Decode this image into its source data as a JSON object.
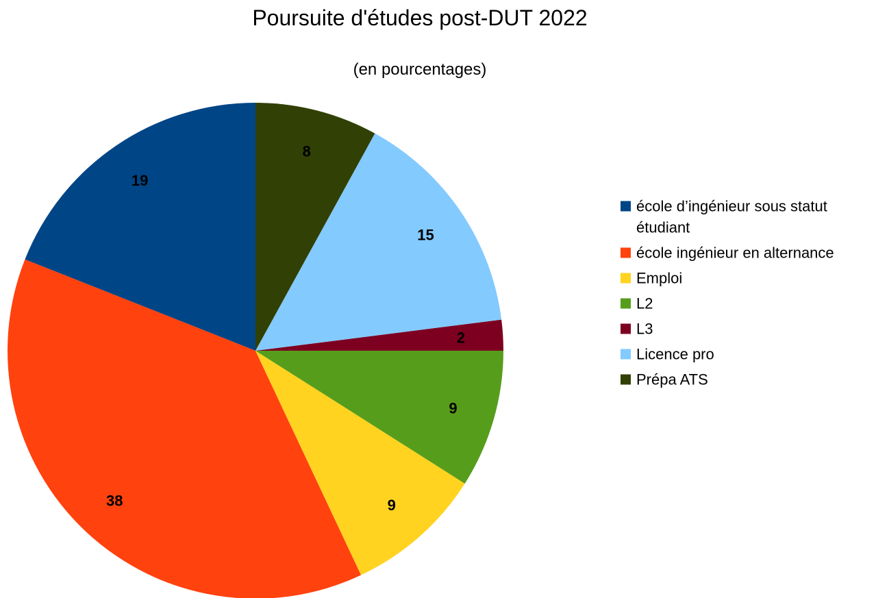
{
  "chart_data": {
    "type": "pie",
    "title": "Poursuite d'études post-DUT 2022",
    "subtitle": "(en pourcentages)",
    "start": "12 o'clock",
    "direction": "counterclockwise",
    "legend_position": "right",
    "show_value_labels": true,
    "slices": [
      {
        "label": "école d’ingénieur sous statut étudiant",
        "legend_lines": [
          "école d’ingénieur sous statut",
          "étudiant"
        ],
        "value": 19,
        "color": "#004586"
      },
      {
        "label": "école ingénieur en alternance",
        "legend_lines": [
          "école ingénieur en alternance"
        ],
        "value": 38,
        "color": "#ff420e"
      },
      {
        "label": "Emploi",
        "legend_lines": [
          "Emploi"
        ],
        "value": 9,
        "color": "#ffd320"
      },
      {
        "label": "L2",
        "legend_lines": [
          "L2"
        ],
        "value": 9,
        "color": "#579d1c"
      },
      {
        "label": "L3",
        "legend_lines": [
          "L3"
        ],
        "value": 2,
        "color": "#7e0021"
      },
      {
        "label": "Licence pro",
        "legend_lines": [
          "Licence pro"
        ],
        "value": 15,
        "color": "#83caff"
      },
      {
        "label": "Prépa ATS",
        "legend_lines": [
          "Prépa ATS"
        ],
        "value": 8,
        "color": "#314004"
      }
    ]
  }
}
